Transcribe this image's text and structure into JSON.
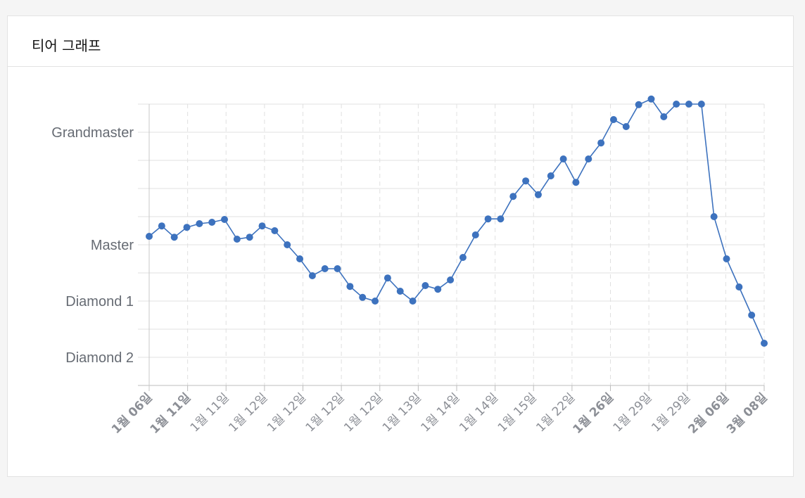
{
  "card": {
    "title": "티어 그래프"
  },
  "colors": {
    "line": "#3d72be",
    "grid": "#e0e0e0",
    "axis": "#bdbdbd",
    "tick_text": "#666b73",
    "xtick_text": "#8c8f96"
  },
  "chart_data": {
    "type": "line",
    "title": "",
    "xlabel": "",
    "ylabel": "",
    "ylim": [
      -1,
      9
    ],
    "y_ticks": [
      {
        "value": 0,
        "label": "Diamond 2"
      },
      {
        "value": 2,
        "label": "Diamond 1"
      },
      {
        "value": 4,
        "label": "Master"
      },
      {
        "value": 8,
        "label": "Grandmaster"
      }
    ],
    "y_minor_gridlines": [
      1,
      3,
      5,
      6,
      7,
      9
    ],
    "x_tick_labels": [
      {
        "label": "1월 06일",
        "bold": true
      },
      {
        "label": "1월 11일",
        "bold": true
      },
      {
        "label": "1월 11일",
        "bold": false
      },
      {
        "label": "1월 12일",
        "bold": false
      },
      {
        "label": "1월 12일",
        "bold": false
      },
      {
        "label": "1월 12일",
        "bold": false
      },
      {
        "label": "1월 12일",
        "bold": false
      },
      {
        "label": "1월 13일",
        "bold": false
      },
      {
        "label": "1월 14일",
        "bold": false
      },
      {
        "label": "1월 14일",
        "bold": false
      },
      {
        "label": "1월 15일",
        "bold": false
      },
      {
        "label": "1월 22일",
        "bold": false
      },
      {
        "label": "1월 26일",
        "bold": true
      },
      {
        "label": "1월 29일",
        "bold": false
      },
      {
        "label": "1월 29일",
        "bold": false
      },
      {
        "label": "2월 06일",
        "bold": true
      },
      {
        "label": "3월 08일",
        "bold": true
      }
    ],
    "grid": true,
    "series": [
      {
        "values": [
          4.3,
          4.67,
          4.27,
          4.62,
          4.75,
          4.8,
          4.9,
          4.2,
          4.27,
          4.67,
          4.5,
          4.0,
          3.5,
          2.9,
          3.15,
          3.15,
          2.52,
          2.13,
          2.0,
          2.82,
          2.35,
          2.0,
          2.55,
          2.42,
          2.75,
          3.55,
          4.35,
          4.92,
          4.92,
          5.72,
          6.27,
          5.78,
          6.45,
          7.05,
          6.22,
          7.05,
          7.62,
          8.45,
          8.2,
          8.98,
          9.18,
          8.55,
          9.0,
          9.0,
          9.0,
          5.0,
          3.5,
          2.5,
          1.5,
          0.5
        ]
      }
    ]
  }
}
